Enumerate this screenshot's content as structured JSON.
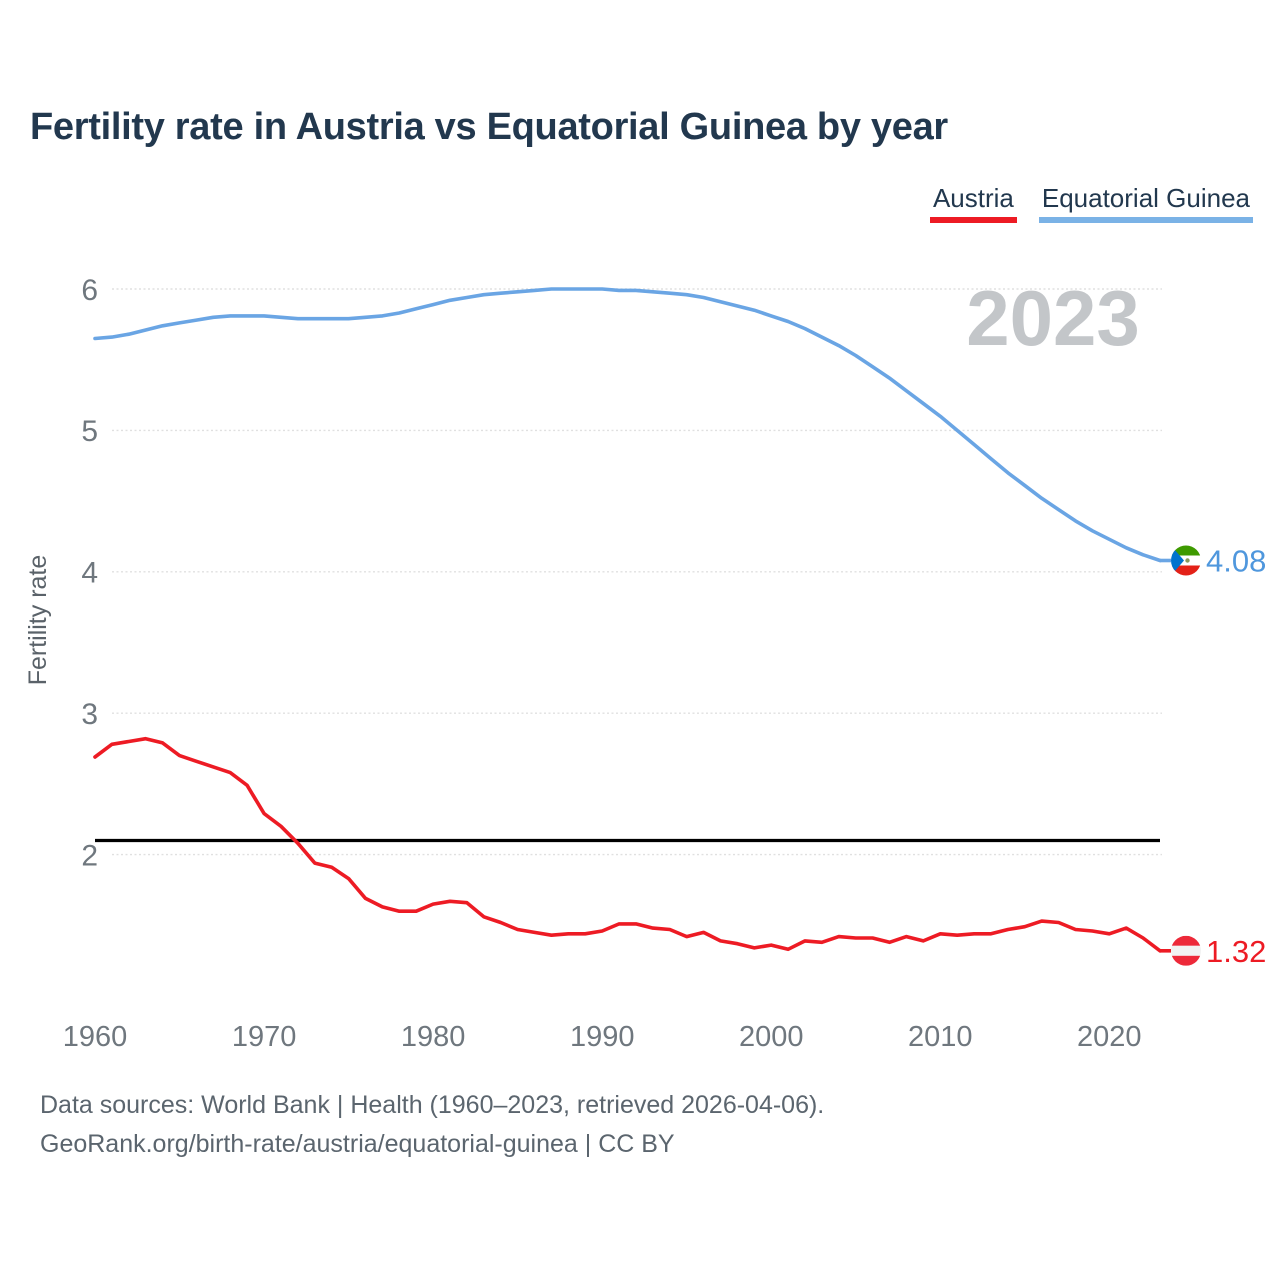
{
  "title": "Fertility rate in Austria vs Equatorial Guinea by year",
  "legend": {
    "austria": {
      "label": "Austria",
      "color": "#ed1b24"
    },
    "equatorial_guinea": {
      "label": "Equatorial Guinea",
      "color": "#7ab2e6"
    }
  },
  "watermark": "2023",
  "y_axis": {
    "label": "Fertility rate",
    "ticks": [
      6,
      5,
      4,
      3,
      2
    ]
  },
  "x_axis": {
    "ticks": [
      1960,
      1970,
      1980,
      1990,
      2000,
      2010,
      2020
    ]
  },
  "reference_line": {
    "value": 2.1,
    "color": "#000000"
  },
  "end_labels": {
    "equatorial_guinea": {
      "value": "4.08",
      "color": "#4f97dd"
    },
    "austria": {
      "value": "1.32",
      "color": "#ed1b24"
    }
  },
  "footer": {
    "line1": "Data sources: World Bank | Health (1960–2023, retrieved 2026-04-06).",
    "line2": "GeoRank.org/birth-rate/austria/equatorial-guinea | CC BY"
  },
  "chart_data": {
    "type": "line",
    "title": "Fertility rate in Austria vs Equatorial Guinea by year",
    "xlabel": "",
    "ylabel": "Fertility rate",
    "xlim": [
      1960,
      2023
    ],
    "ylim": [
      1.2,
      6.25
    ],
    "grid": "horizontal-dotted",
    "legend_position": "top-right",
    "reference_line": 2.1,
    "x": [
      1960,
      1961,
      1962,
      1963,
      1964,
      1965,
      1966,
      1967,
      1968,
      1969,
      1970,
      1971,
      1972,
      1973,
      1974,
      1975,
      1976,
      1977,
      1978,
      1979,
      1980,
      1981,
      1982,
      1983,
      1984,
      1985,
      1986,
      1987,
      1988,
      1989,
      1990,
      1991,
      1992,
      1993,
      1994,
      1995,
      1996,
      1997,
      1998,
      1999,
      2000,
      2001,
      2002,
      2003,
      2004,
      2005,
      2006,
      2007,
      2008,
      2009,
      2010,
      2011,
      2012,
      2013,
      2014,
      2015,
      2016,
      2017,
      2018,
      2019,
      2020,
      2021,
      2022,
      2023
    ],
    "series": [
      {
        "name": "Austria",
        "color": "#ed1b24",
        "values": [
          2.69,
          2.78,
          2.8,
          2.82,
          2.79,
          2.7,
          2.66,
          2.62,
          2.58,
          2.49,
          2.29,
          2.2,
          2.08,
          1.94,
          1.91,
          1.83,
          1.69,
          1.63,
          1.6,
          1.6,
          1.65,
          1.67,
          1.66,
          1.56,
          1.52,
          1.47,
          1.45,
          1.43,
          1.44,
          1.44,
          1.46,
          1.51,
          1.51,
          1.48,
          1.47,
          1.42,
          1.45,
          1.39,
          1.37,
          1.34,
          1.36,
          1.33,
          1.39,
          1.38,
          1.42,
          1.41,
          1.41,
          1.38,
          1.42,
          1.39,
          1.44,
          1.43,
          1.44,
          1.44,
          1.47,
          1.49,
          1.53,
          1.52,
          1.47,
          1.46,
          1.44,
          1.48,
          1.41,
          1.32
        ]
      },
      {
        "name": "Equatorial Guinea",
        "color": "#6aa5e4",
        "values": [
          5.65,
          5.66,
          5.68,
          5.71,
          5.74,
          5.76,
          5.78,
          5.8,
          5.81,
          5.81,
          5.81,
          5.8,
          5.79,
          5.79,
          5.79,
          5.79,
          5.8,
          5.81,
          5.83,
          5.86,
          5.89,
          5.92,
          5.94,
          5.96,
          5.97,
          5.98,
          5.99,
          6.0,
          6.0,
          6.0,
          6.0,
          5.99,
          5.99,
          5.98,
          5.97,
          5.96,
          5.94,
          5.91,
          5.88,
          5.85,
          5.81,
          5.77,
          5.72,
          5.66,
          5.6,
          5.53,
          5.45,
          5.37,
          5.28,
          5.19,
          5.1,
          5.0,
          4.9,
          4.8,
          4.7,
          4.61,
          4.52,
          4.44,
          4.36,
          4.29,
          4.23,
          4.17,
          4.12,
          4.08
        ]
      }
    ]
  }
}
